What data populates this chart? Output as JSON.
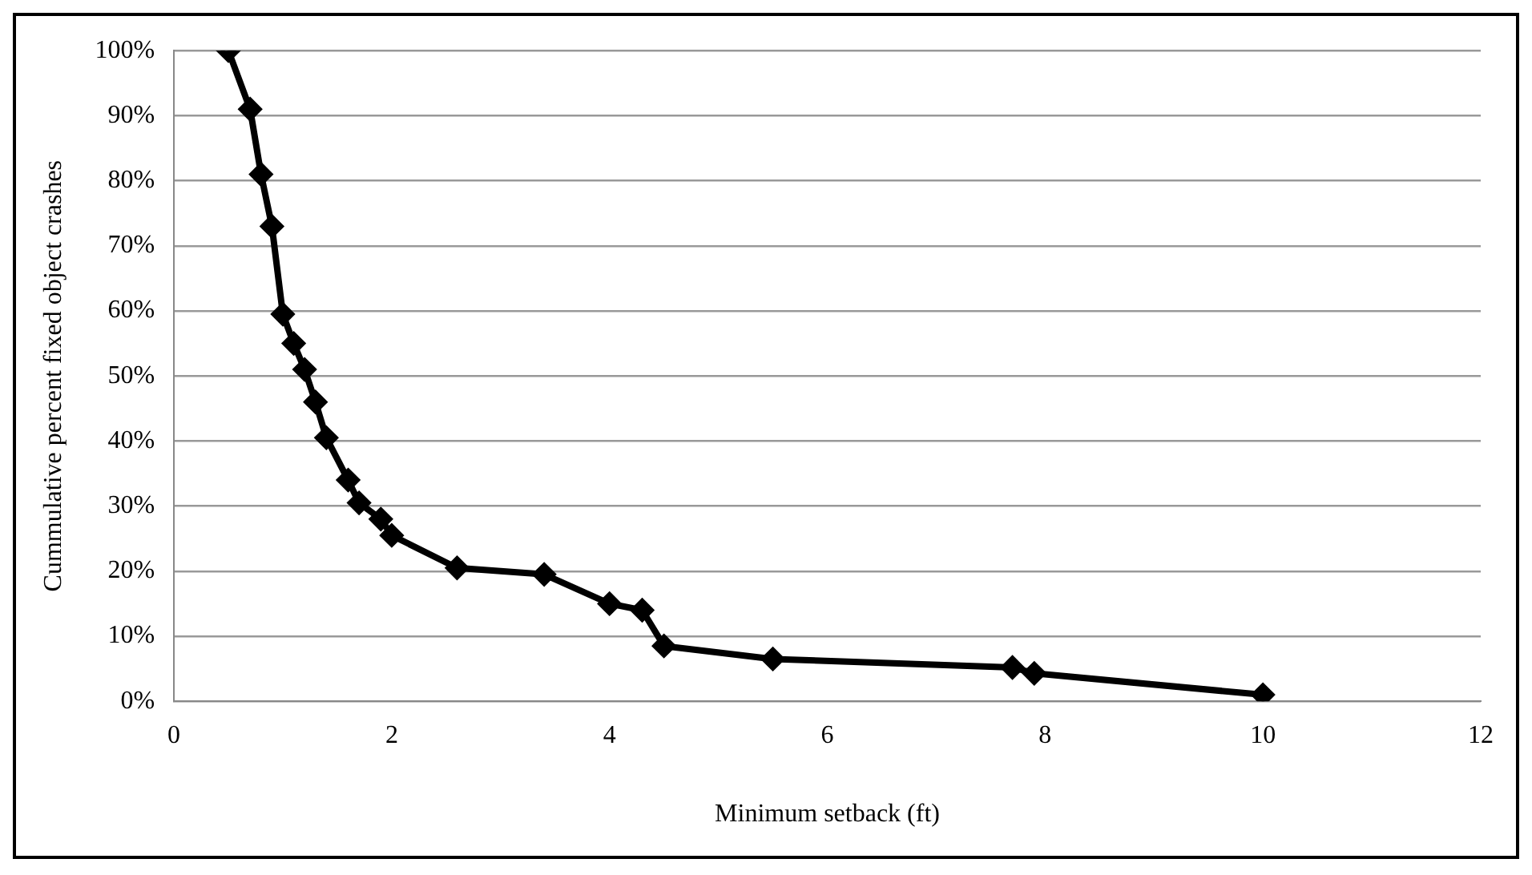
{
  "chart_data": {
    "type": "line",
    "xlabel": "Minimum setback (ft)",
    "ylabel": "Cummulative percent fixed object crashes",
    "x": [
      0.5,
      0.7,
      0.8,
      0.9,
      1.0,
      1.1,
      1.2,
      1.3,
      1.4,
      1.6,
      1.7,
      1.9,
      2.0,
      2.6,
      3.4,
      4.0,
      4.3,
      4.5,
      5.5,
      7.7,
      7.9,
      10
    ],
    "series": [
      {
        "color": "#000000",
        "values": [
          100,
          91,
          81,
          73,
          59.5,
          55,
          51,
          46,
          40.5,
          34,
          30.5,
          28,
          25.5,
          20.5,
          19.5,
          15,
          14,
          8.5,
          6.5,
          5.2,
          4.3,
          1
        ]
      }
    ],
    "xlim": [
      0,
      12
    ],
    "xticks": [
      0,
      2,
      4,
      6,
      8,
      10,
      12
    ],
    "ylim": [
      0,
      100
    ],
    "yticks": [
      {
        "value": 0,
        "label": "0%"
      },
      {
        "value": 10,
        "label": "10%"
      },
      {
        "value": 20,
        "label": "20%"
      },
      {
        "value": 30,
        "label": "30%"
      },
      {
        "value": 40,
        "label": "40%"
      },
      {
        "value": 50,
        "label": "50%"
      },
      {
        "value": 60,
        "label": "60%"
      },
      {
        "value": 70,
        "label": "70%"
      },
      {
        "value": 80,
        "label": "80%"
      },
      {
        "value": 90,
        "label": "90%"
      },
      {
        "value": 100,
        "label": "100%"
      }
    ],
    "grid": "y",
    "marker": "diamond",
    "line_style": "solid",
    "legend": false
  }
}
